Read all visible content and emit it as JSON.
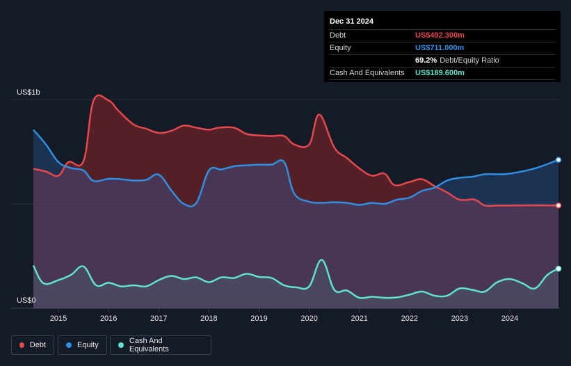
{
  "tooltip": {
    "date": "Dec 31 2024",
    "debt_label": "Debt",
    "debt_value": "US$492.300m",
    "equity_label": "Equity",
    "equity_value": "US$711.000m",
    "ratio_value": "69.2%",
    "ratio_label": "Debt/Equity Ratio",
    "cash_label": "Cash And Equivalents",
    "cash_value": "US$189.600m"
  },
  "legend": {
    "debt": "Debt",
    "equity": "Equity",
    "cash": "Cash And Equivalents"
  },
  "colors": {
    "debt": "#e5484d",
    "equity": "#2f8fe3",
    "cash": "#5fe3cf",
    "background": "#151b26"
  },
  "chart_data": {
    "type": "area",
    "y_top_label": "US$1b",
    "y_bottom_label": "US$0",
    "ylim": [
      0,
      1000
    ],
    "x_ticks": [
      "2015",
      "2016",
      "2017",
      "2018",
      "2019",
      "2020",
      "2021",
      "2022",
      "2023",
      "2024"
    ],
    "grid": "horizontal",
    "series": [
      {
        "name": "Debt",
        "points": [
          [
            2014.5,
            668
          ],
          [
            2014.75,
            655
          ],
          [
            2015.0,
            635
          ],
          [
            2015.2,
            700
          ],
          [
            2015.5,
            705
          ],
          [
            2015.7,
            995
          ],
          [
            2016.0,
            995
          ],
          [
            2016.2,
            945
          ],
          [
            2016.5,
            880
          ],
          [
            2016.75,
            860
          ],
          [
            2017.0,
            840
          ],
          [
            2017.25,
            850
          ],
          [
            2017.5,
            875
          ],
          [
            2017.75,
            865
          ],
          [
            2018.0,
            855
          ],
          [
            2018.2,
            865
          ],
          [
            2018.5,
            865
          ],
          [
            2018.75,
            835
          ],
          [
            2019.0,
            828
          ],
          [
            2019.25,
            825
          ],
          [
            2019.5,
            825
          ],
          [
            2019.7,
            785
          ],
          [
            2020.0,
            785
          ],
          [
            2020.2,
            928
          ],
          [
            2020.5,
            770
          ],
          [
            2020.75,
            720
          ],
          [
            2021.0,
            670
          ],
          [
            2021.25,
            635
          ],
          [
            2021.5,
            645
          ],
          [
            2021.7,
            590
          ],
          [
            2022.0,
            605
          ],
          [
            2022.25,
            618
          ],
          [
            2022.5,
            585
          ],
          [
            2022.75,
            555
          ],
          [
            2023.0,
            520
          ],
          [
            2023.3,
            520
          ],
          [
            2023.5,
            492
          ],
          [
            2023.75,
            492
          ],
          [
            2024.0,
            492
          ],
          [
            2024.5,
            493
          ],
          [
            2024.97,
            492.3
          ]
        ]
      },
      {
        "name": "Equity",
        "points": [
          [
            2014.5,
            855
          ],
          [
            2014.75,
            785
          ],
          [
            2015.0,
            700
          ],
          [
            2015.25,
            672
          ],
          [
            2015.5,
            660
          ],
          [
            2015.7,
            610
          ],
          [
            2016.0,
            620
          ],
          [
            2016.25,
            618
          ],
          [
            2016.5,
            612
          ],
          [
            2016.75,
            615
          ],
          [
            2017.0,
            640
          ],
          [
            2017.25,
            565
          ],
          [
            2017.5,
            500
          ],
          [
            2017.75,
            505
          ],
          [
            2018.0,
            660
          ],
          [
            2018.25,
            665
          ],
          [
            2018.5,
            680
          ],
          [
            2018.75,
            685
          ],
          [
            2019.0,
            688
          ],
          [
            2019.25,
            688
          ],
          [
            2019.5,
            700
          ],
          [
            2019.7,
            550
          ],
          [
            2020.0,
            510
          ],
          [
            2020.25,
            505
          ],
          [
            2020.5,
            508
          ],
          [
            2020.75,
            505
          ],
          [
            2021.0,
            495
          ],
          [
            2021.25,
            505
          ],
          [
            2021.5,
            500
          ],
          [
            2021.75,
            520
          ],
          [
            2022.0,
            530
          ],
          [
            2022.25,
            562
          ],
          [
            2022.5,
            578
          ],
          [
            2022.75,
            612
          ],
          [
            2023.0,
            625
          ],
          [
            2023.25,
            630
          ],
          [
            2023.5,
            642
          ],
          [
            2023.75,
            642
          ],
          [
            2024.0,
            645
          ],
          [
            2024.5,
            670
          ],
          [
            2024.97,
            711.0
          ]
        ]
      },
      {
        "name": "Cash And Equivalents",
        "points": [
          [
            2014.5,
            205
          ],
          [
            2014.7,
            120
          ],
          [
            2015.0,
            135
          ],
          [
            2015.25,
            160
          ],
          [
            2015.5,
            200
          ],
          [
            2015.75,
            110
          ],
          [
            2016.0,
            122
          ],
          [
            2016.25,
            105
          ],
          [
            2016.5,
            110
          ],
          [
            2016.75,
            105
          ],
          [
            2017.0,
            135
          ],
          [
            2017.25,
            155
          ],
          [
            2017.5,
            140
          ],
          [
            2017.75,
            148
          ],
          [
            2018.0,
            125
          ],
          [
            2018.25,
            148
          ],
          [
            2018.5,
            145
          ],
          [
            2018.75,
            165
          ],
          [
            2019.0,
            150
          ],
          [
            2019.25,
            145
          ],
          [
            2019.5,
            110
          ],
          [
            2019.75,
            100
          ],
          [
            2020.0,
            105
          ],
          [
            2020.25,
            232
          ],
          [
            2020.5,
            88
          ],
          [
            2020.75,
            85
          ],
          [
            2021.0,
            50
          ],
          [
            2021.25,
            55
          ],
          [
            2021.5,
            50
          ],
          [
            2021.75,
            52
          ],
          [
            2022.0,
            65
          ],
          [
            2022.25,
            80
          ],
          [
            2022.5,
            60
          ],
          [
            2022.75,
            60
          ],
          [
            2023.0,
            95
          ],
          [
            2023.25,
            88
          ],
          [
            2023.5,
            80
          ],
          [
            2023.75,
            125
          ],
          [
            2024.0,
            140
          ],
          [
            2024.25,
            120
          ],
          [
            2024.5,
            95
          ],
          [
            2024.75,
            160
          ],
          [
            2024.97,
            189.6
          ]
        ]
      }
    ]
  }
}
